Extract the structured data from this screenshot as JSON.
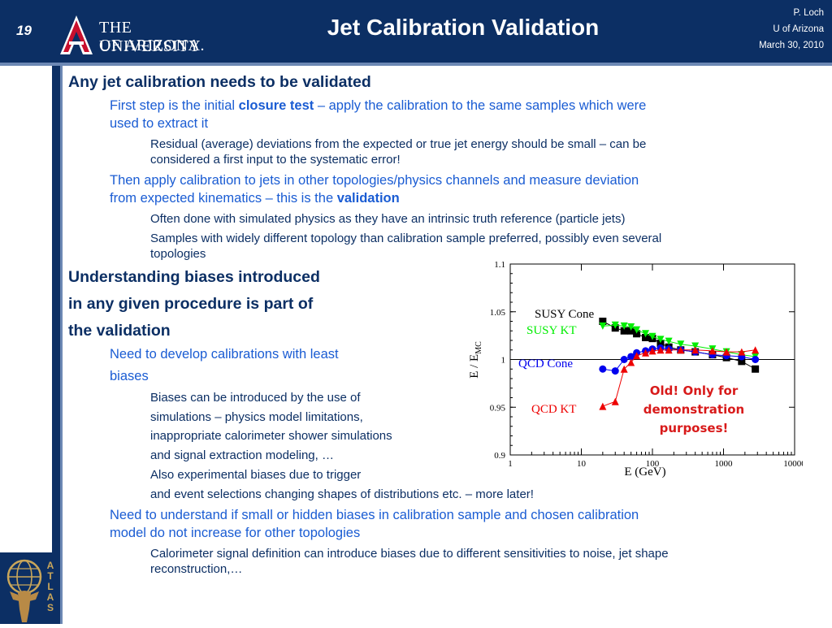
{
  "header": {
    "slide_number": "19",
    "logo_line1": "THE UNIVERSITY",
    "logo_line2": "OF ARIZONA.",
    "title": "Jet Calibration Validation",
    "author": "P. Loch",
    "affiliation": "U of Arizona",
    "date": "March 30, 2010"
  },
  "content": {
    "b1": "Any jet calibration needs to be validated",
    "b1_1_pre": "First step is the initial ",
    "b1_1_bold": "closure test",
    "b1_1_post": " – apply the calibration to the same samples which were",
    "b1_1_line2": "used to  extract it",
    "b1_1_1_line1": "Residual (average) deviations from the expected or true jet energy should be small – can be",
    "b1_1_1_line2": "considered a first input to the systematic error!",
    "b1_2_line1": "Then apply calibration to jets in other topologies/physics channels and measure deviation",
    "b1_2_line2_pre": "from expected kinematics – this is the ",
    "b1_2_line2_bold": "validation",
    "b1_2_1": "Often done with simulated physics as they have an intrinsic truth reference (particle jets)",
    "b1_2_2_line1": "Samples with widely different topology than calibration sample preferred, possibly even several",
    "b1_2_2_line2": "topologies",
    "b2_line1": "Understanding biases introduced",
    "b2_line2": "in any given procedure is part of",
    "b2_line3": "the validation",
    "b2_1_line1": "Need to develop calibrations with least",
    "b2_1_line2": "biases",
    "b2_1_1_line1": "Biases can be introduced by the use of",
    "b2_1_1_line2": "simulations – physics model limitations,",
    "b2_1_1_line3": "inappropriate calorimeter shower simulations",
    "b2_1_1_line4": "and signal extraction modeling, …",
    "b2_1_2_line1": "Also experimental biases due to trigger",
    "b2_1_2_line2": "and event selections changing shapes of distributions etc. – more later!",
    "b2_2_line1": "Need to understand if small or hidden biases in calibration sample and  chosen calibration",
    "b2_2_line2": "model do not increase for other topologies",
    "b2_2_1_line1": "Calorimeter signal definition can introduce biases due to different sensitivities to noise, jet shape",
    "b2_2_1_line2": "reconstruction,…"
  },
  "atlas_label": "ATLAS",
  "note": {
    "line1": "Old! Only for",
    "line2": "demonstration",
    "line3": "purposes!"
  },
  "chart_data": {
    "type": "scatter",
    "xlabel": "E (GeV)",
    "ylabel": "E / E",
    "ylabel_sub": "MC",
    "x_scale": "log",
    "xlim": [
      1,
      10000
    ],
    "ylim": [
      0.9,
      1.1
    ],
    "x_ticks": [
      "1",
      "10",
      "100",
      "1000",
      "10000"
    ],
    "y_ticks": [
      "0.9",
      "0.95",
      "1",
      "1.05",
      "1.1"
    ],
    "series": [
      {
        "name": "SUSY Cone",
        "color": "#000000",
        "marker": "square",
        "x": [
          20,
          30,
          40,
          50,
          60,
          80,
          100,
          130,
          170,
          250,
          400,
          700,
          1100,
          1800,
          2800
        ],
        "y": [
          1.04,
          1.033,
          1.03,
          1.03,
          1.027,
          1.023,
          1.022,
          1.017,
          1.013,
          1.01,
          1.008,
          1.005,
          1.002,
          0.998,
          0.99
        ]
      },
      {
        "name": "SUSY KT",
        "color": "#00ee00",
        "marker": "triangle-down",
        "x": [
          20,
          30,
          40,
          50,
          60,
          80,
          100,
          130,
          170,
          250,
          400,
          700,
          1100,
          1800,
          2800
        ],
        "y": [
          1.035,
          1.036,
          1.035,
          1.034,
          1.031,
          1.027,
          1.024,
          1.021,
          1.019,
          1.016,
          1.014,
          1.011,
          1.008,
          1.005,
          1.003
        ]
      },
      {
        "name": "QCD Cone",
        "color": "#0000ee",
        "marker": "circle",
        "x": [
          20,
          30,
          40,
          50,
          60,
          80,
          100,
          130,
          170,
          250,
          400,
          700,
          1100,
          1800,
          2800
        ],
        "y": [
          0.99,
          0.988,
          1.0,
          1.003,
          1.007,
          1.009,
          1.011,
          1.012,
          1.011,
          1.01,
          1.008,
          1.005,
          1.004,
          1.003,
          1.0
        ]
      },
      {
        "name": "QCD KT",
        "color": "#ee0000",
        "marker": "triangle-up",
        "x": [
          20,
          30,
          40,
          50,
          60,
          80,
          100,
          130,
          170,
          250,
          400,
          700,
          1100,
          1800,
          2800
        ],
        "y": [
          0.951,
          0.956,
          0.99,
          0.997,
          1.004,
          1.007,
          1.009,
          1.01,
          1.01,
          1.01,
          1.01,
          1.009,
          1.008,
          1.008,
          1.01
        ]
      }
    ]
  }
}
